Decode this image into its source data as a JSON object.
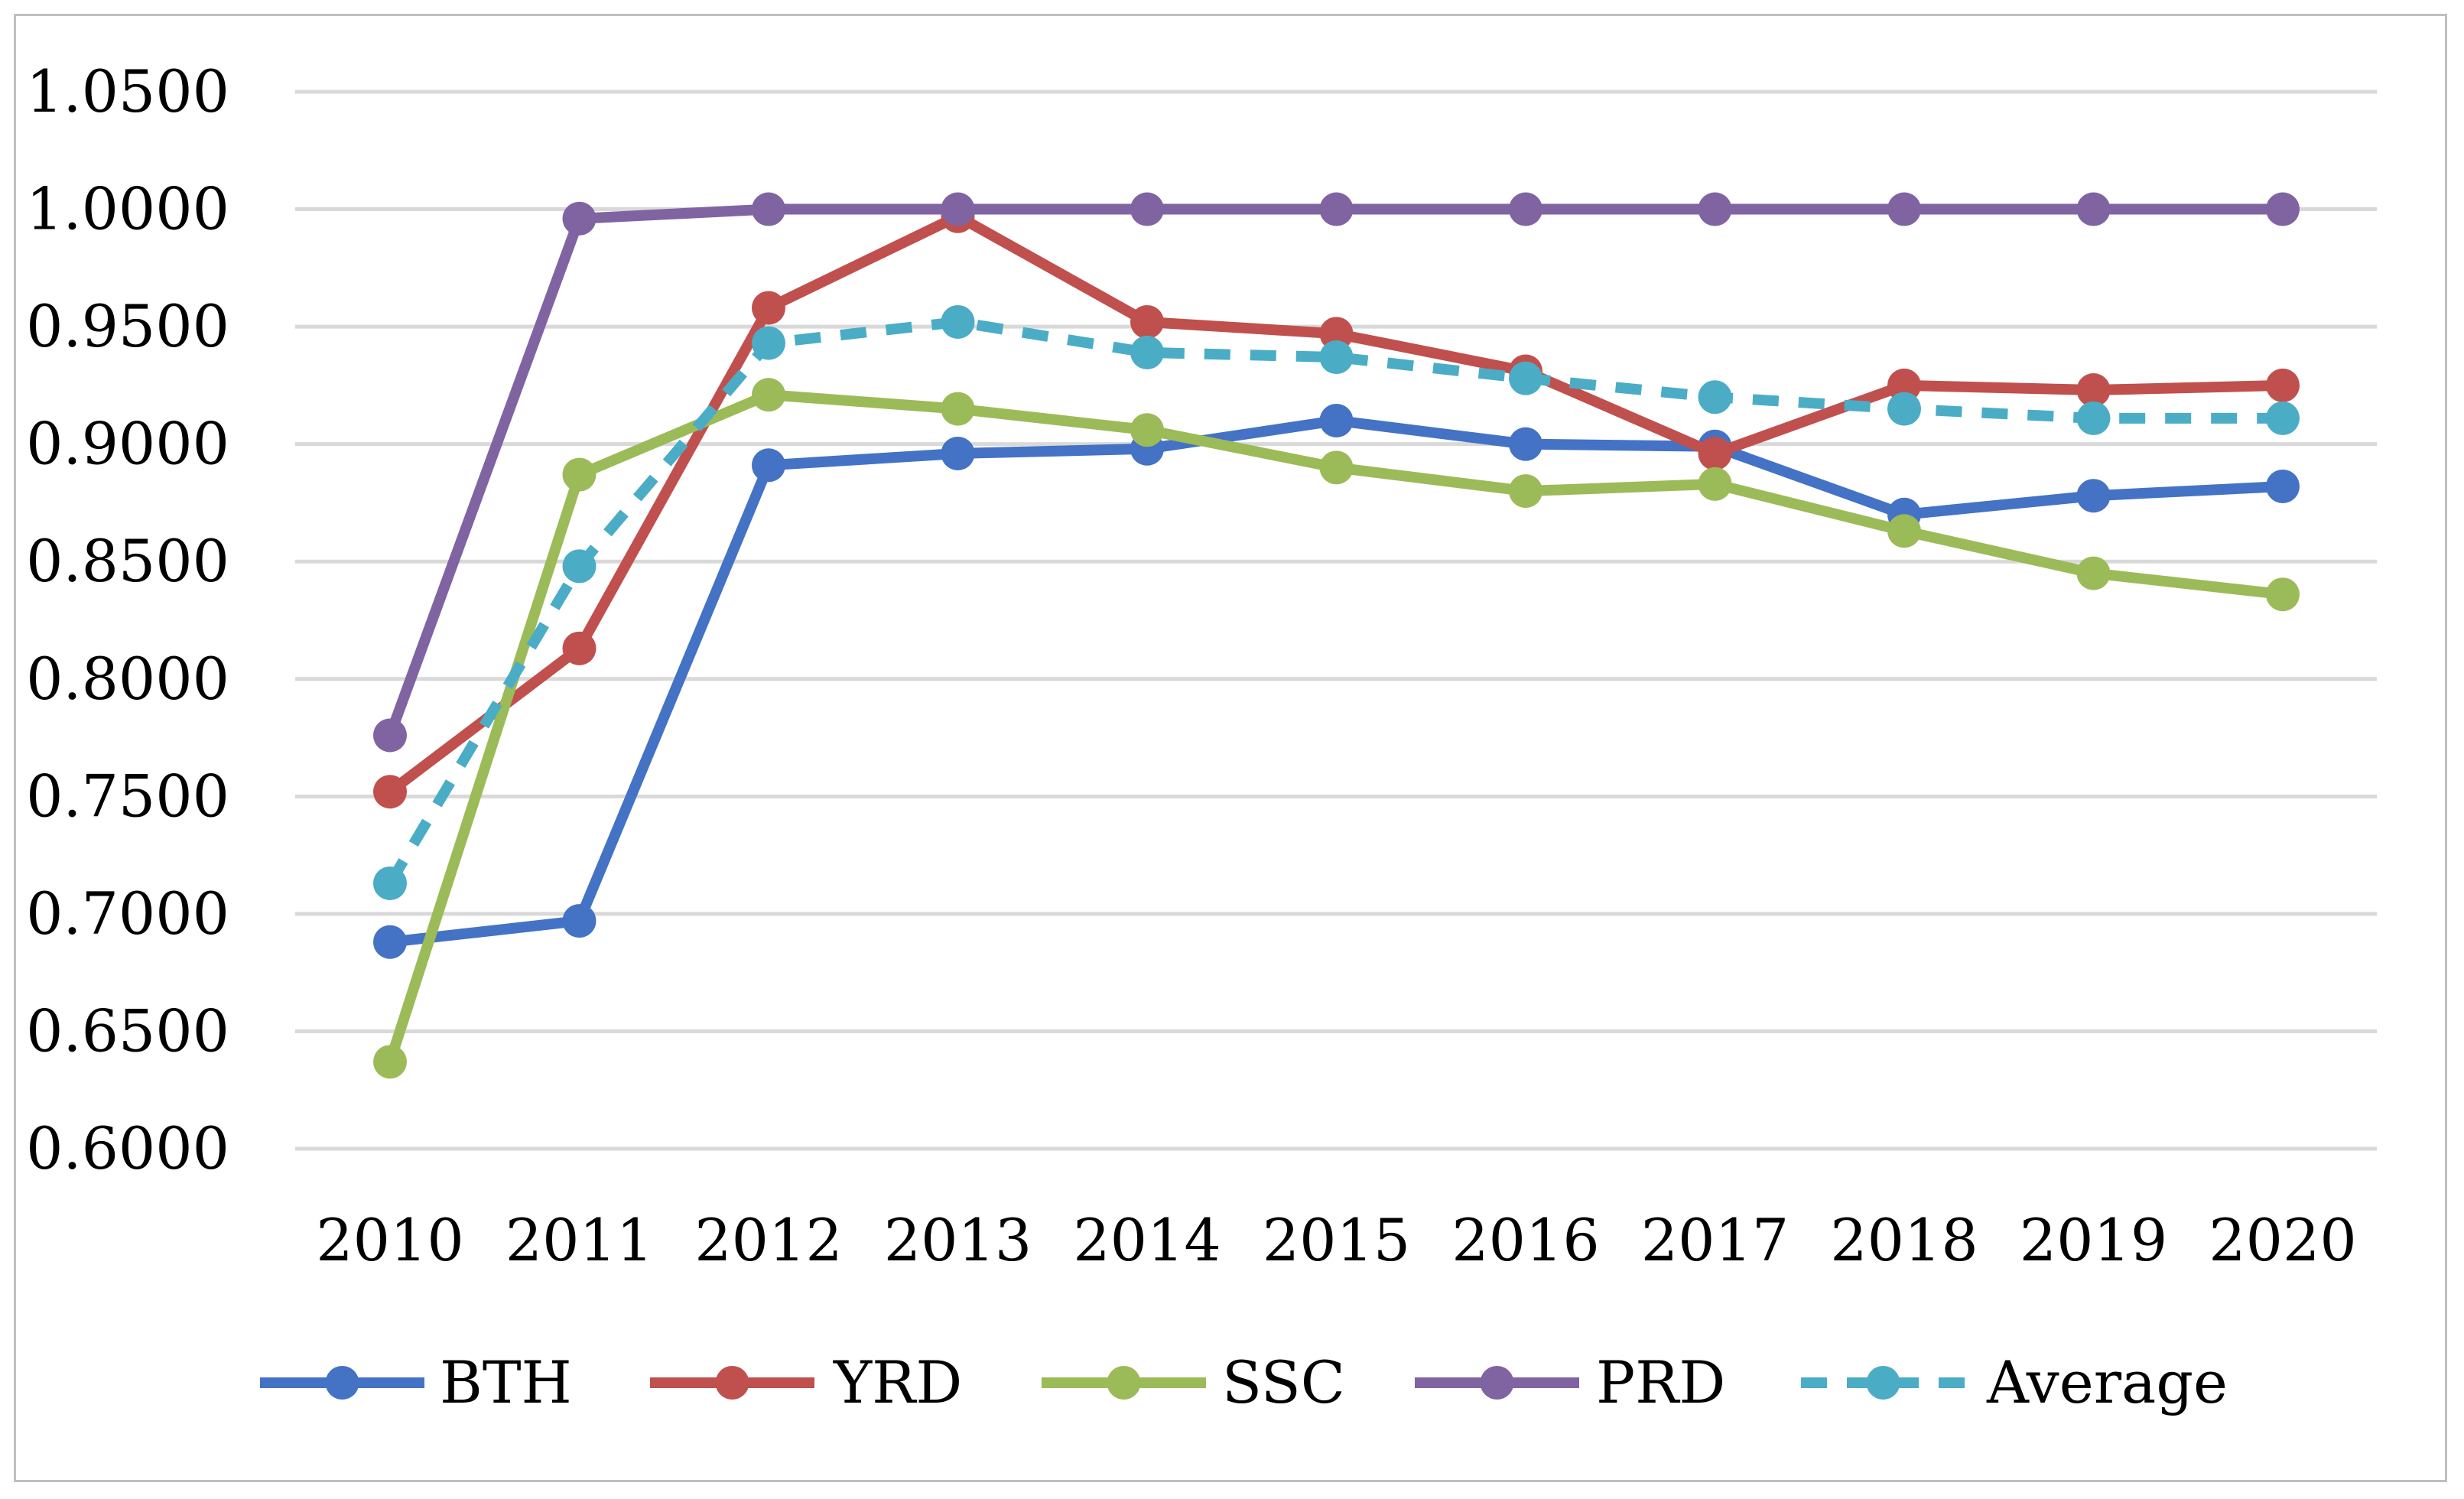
{
  "chart_data": {
    "type": "line",
    "title": "",
    "xlabel": "",
    "ylabel": "",
    "categories": [
      "2010",
      "2011",
      "2012",
      "2013",
      "2014",
      "2015",
      "2016",
      "2017",
      "2018",
      "2019",
      "2020"
    ],
    "ylim": [
      0.6,
      1.05
    ],
    "ytick_values": [
      0.6,
      0.65,
      0.7,
      0.75,
      0.8,
      0.85,
      0.9,
      0.95,
      1.0,
      1.05
    ],
    "ytick_labels": [
      "0.6000",
      "0.6500",
      "0.7000",
      "0.7500",
      "0.8000",
      "0.8500",
      "0.9000",
      "0.9500",
      "1.0000",
      "1.0500"
    ],
    "grid": true,
    "legend_position": "bottom",
    "series": [
      {
        "name": "BTH",
        "color": "#4472C4",
        "dashed": false,
        "values": [
          0.688,
          0.697,
          0.891,
          0.896,
          0.898,
          0.91,
          0.9,
          0.899,
          0.87,
          0.878,
          0.882
        ]
      },
      {
        "name": "YRD",
        "color": "#C0504D",
        "dashed": false,
        "values": [
          0.752,
          0.813,
          0.958,
          0.997,
          0.952,
          0.947,
          0.931,
          0.896,
          0.925,
          0.923,
          0.925
        ]
      },
      {
        "name": "SSC",
        "color": "#9BBB59",
        "dashed": false,
        "values": [
          0.637,
          0.887,
          0.921,
          0.915,
          0.906,
          0.89,
          0.88,
          0.883,
          0.863,
          0.845,
          0.836
        ]
      },
      {
        "name": "PRD",
        "color": "#8064A2",
        "dashed": false,
        "values": [
          0.776,
          0.996,
          1.0,
          1.0,
          1.0,
          1.0,
          1.0,
          1.0,
          1.0,
          1.0,
          1.0
        ]
      },
      {
        "name": "Average",
        "color": "#4BACC6",
        "dashed": true,
        "values": [
          0.713,
          0.848,
          0.943,
          0.952,
          0.939,
          0.937,
          0.928,
          0.92,
          0.915,
          0.911,
          0.911
        ]
      }
    ]
  }
}
